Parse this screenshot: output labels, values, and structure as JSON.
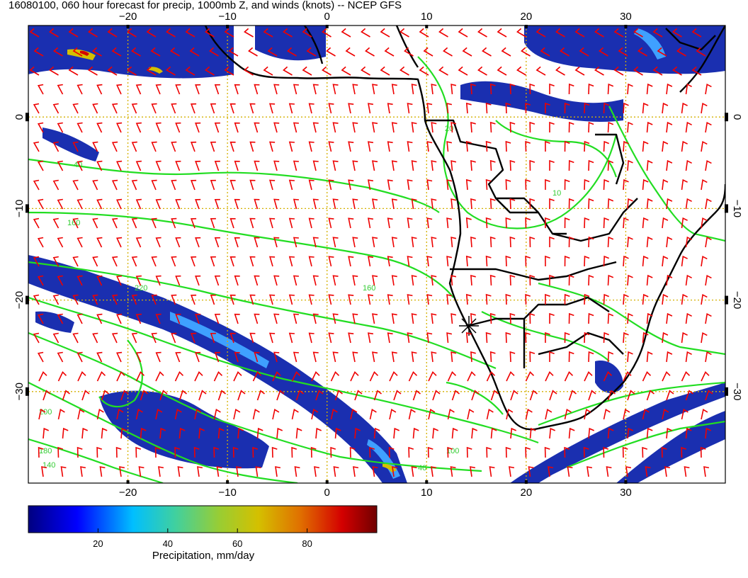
{
  "title": "16080100, 060 hour forecast for precip, 1000mb Z, and winds (knots) -- NCEP GFS",
  "map": {
    "lon_range": [
      -30,
      40
    ],
    "lat_range": [
      -40,
      10
    ],
    "lon_ticks": [
      {
        "value": -20,
        "label": "−20"
      },
      {
        "value": -10,
        "label": "−10"
      },
      {
        "value": 0,
        "label": "0"
      },
      {
        "value": 10,
        "label": "10"
      },
      {
        "value": 20,
        "label": "20"
      },
      {
        "value": 30,
        "label": "30"
      }
    ],
    "lat_ticks": [
      {
        "value": 0,
        "label": "0"
      },
      {
        "value": -10,
        "label": "−10"
      },
      {
        "value": -20,
        "label": "−20"
      },
      {
        "value": -30,
        "label": "−30"
      }
    ],
    "grid": true,
    "contour_color": "#22dd22",
    "barb_color": "#ee0000",
    "coast_color": "#000000",
    "contour_labels": [
      "40",
      "160",
      "20",
      "10",
      "220",
      "200",
      "180",
      "140",
      "100"
    ]
  },
  "colorbar": {
    "label": "Precipitation, mm/day",
    "ticks": [
      "20",
      "40",
      "60",
      "80"
    ],
    "tick_values": [
      20,
      40,
      60,
      80
    ],
    "range": [
      0,
      100
    ],
    "colors": [
      "#000080",
      "#0000ff",
      "#00bfff",
      "#3fd0a0",
      "#9acd32",
      "#d4c000",
      "#e07000",
      "#d40000",
      "#700000"
    ]
  }
}
